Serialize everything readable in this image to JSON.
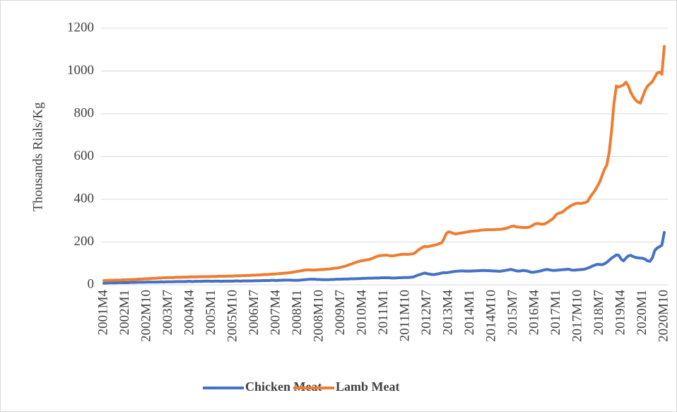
{
  "chart_data": {
    "type": "line",
    "y_label": "Thousands Rials/Kg",
    "ylim": [
      0,
      1200
    ],
    "yticks": [
      0,
      200,
      400,
      600,
      800,
      1000,
      1200
    ],
    "grid": true,
    "legend": "bottom",
    "categories": [
      "2001M4",
      null,
      null,
      null,
      null,
      null,
      null,
      null,
      null,
      "2002M1",
      null,
      null,
      null,
      null,
      null,
      null,
      null,
      null,
      "2002M10",
      null,
      null,
      null,
      null,
      null,
      null,
      null,
      null,
      "2003M7",
      null,
      null,
      null,
      null,
      null,
      null,
      null,
      null,
      "2004M4",
      null,
      null,
      null,
      null,
      null,
      null,
      null,
      null,
      "2005M1",
      null,
      null,
      null,
      null,
      null,
      null,
      null,
      null,
      "2005M10",
      null,
      null,
      null,
      null,
      null,
      null,
      null,
      null,
      "2006M7",
      null,
      null,
      null,
      null,
      null,
      null,
      null,
      null,
      "2007M4",
      null,
      null,
      null,
      null,
      null,
      null,
      null,
      null,
      "2008M1",
      null,
      null,
      null,
      null,
      null,
      null,
      null,
      null,
      "2008M10",
      null,
      null,
      null,
      null,
      null,
      null,
      null,
      null,
      "2009M7",
      null,
      null,
      null,
      null,
      null,
      null,
      null,
      null,
      "2010M4",
      null,
      null,
      null,
      null,
      null,
      null,
      null,
      null,
      "2011M1",
      null,
      null,
      null,
      null,
      null,
      null,
      null,
      null,
      "2011M10",
      null,
      null,
      null,
      null,
      null,
      null,
      null,
      null,
      "2012M7",
      null,
      null,
      null,
      null,
      null,
      null,
      null,
      null,
      "2013M4",
      null,
      null,
      null,
      null,
      null,
      null,
      null,
      null,
      "2014M1",
      null,
      null,
      null,
      null,
      null,
      null,
      null,
      null,
      "2014M10",
      null,
      null,
      null,
      null,
      null,
      null,
      null,
      null,
      "2015M7",
      null,
      null,
      null,
      null,
      null,
      null,
      null,
      null,
      "2016M4",
      null,
      null,
      null,
      null,
      null,
      null,
      null,
      null,
      "2017M1",
      null,
      null,
      null,
      null,
      null,
      null,
      null,
      null,
      "2017M10",
      null,
      null,
      null,
      null,
      null,
      null,
      null,
      null,
      "2018M7",
      null,
      null,
      null,
      null,
      null,
      null,
      null,
      null,
      "2019M4",
      null,
      null,
      null,
      null,
      null,
      null,
      null,
      null,
      "2020M1",
      null,
      null,
      null,
      null,
      null,
      null,
      null,
      null,
      "2020M10"
    ],
    "series": [
      {
        "name": "Chicken Meat",
        "color": "#4472c4",
        "values": [
          8,
          8,
          9,
          9,
          9,
          9,
          10,
          10,
          10,
          10,
          10,
          11,
          11,
          11,
          12,
          12,
          12,
          12,
          13,
          13,
          13,
          13,
          13,
          13,
          14,
          13,
          14,
          14,
          14,
          14,
          15,
          15,
          15,
          15,
          15,
          16,
          16,
          15,
          16,
          16,
          16,
          16,
          17,
          17,
          17,
          16,
          17,
          17,
          17,
          16,
          17,
          17,
          17,
          17,
          17,
          18,
          18,
          17,
          18,
          18,
          18,
          18,
          18,
          19,
          19,
          19,
          20,
          20,
          20,
          20,
          21,
          21,
          20,
          21,
          21,
          22,
          22,
          22,
          22,
          21,
          21,
          21,
          22,
          23,
          24,
          25,
          26,
          26,
          26,
          25,
          25,
          24,
          24,
          24,
          24,
          25,
          25,
          26,
          26,
          26,
          27,
          27,
          27,
          28,
          28,
          28,
          29,
          29,
          30,
          30,
          31,
          31,
          31,
          32,
          32,
          32,
          33,
          33,
          33,
          33,
          32,
          32,
          32,
          33,
          33,
          34,
          34,
          34,
          35,
          36,
          40,
          45,
          48,
          52,
          55,
          52,
          50,
          48,
          48,
          50,
          52,
          55,
          57,
          56,
          58,
          60,
          62,
          63,
          64,
          65,
          65,
          64,
          64,
          64,
          65,
          65,
          66,
          66,
          67,
          67,
          66,
          66,
          65,
          65,
          64,
          63,
          64,
          66,
          68,
          70,
          72,
          69,
          66,
          64,
          65,
          67,
          66,
          64,
          60,
          58,
          60,
          62,
          64,
          67,
          70,
          72,
          70,
          68,
          67,
          68,
          69,
          70,
          71,
          72,
          73,
          70,
          68,
          69,
          70,
          71,
          72,
          74,
          78,
          82,
          88,
          92,
          96,
          95,
          94,
          98,
          105,
          115,
          125,
          132,
          140,
          138,
          120,
          112,
          125,
          135,
          138,
          132,
          128,
          126,
          125,
          124,
          120,
          112,
          110,
          125,
          160,
          172,
          178,
          185,
          245
        ]
      },
      {
        "name": "Lamb Meat",
        "color": "#ed7d31",
        "values": [
          20,
          20,
          21,
          21,
          21,
          22,
          22,
          22,
          23,
          23,
          24,
          24,
          25,
          25,
          26,
          27,
          27,
          28,
          28,
          29,
          30,
          30,
          31,
          32,
          32,
          33,
          33,
          34,
          34,
          34,
          35,
          35,
          35,
          36,
          36,
          36,
          37,
          37,
          37,
          37,
          38,
          38,
          38,
          38,
          38,
          39,
          39,
          39,
          40,
          40,
          40,
          40,
          41,
          41,
          41,
          42,
          42,
          42,
          43,
          43,
          44,
          44,
          45,
          45,
          46,
          46,
          47,
          48,
          48,
          49,
          50,
          50,
          51,
          52,
          53,
          54,
          55,
          56,
          57,
          59,
          61,
          63,
          65,
          67,
          69,
          70,
          70,
          69,
          69,
          70,
          71,
          71,
          72,
          73,
          74,
          75,
          77,
          78,
          80,
          82,
          85,
          88,
          92,
          96,
          100,
          104,
          108,
          111,
          113,
          115,
          117,
          119,
          123,
          128,
          133,
          136,
          137,
          138,
          139,
          137,
          135,
          136,
          138,
          140,
          142,
          143,
          143,
          142,
          144,
          145,
          150,
          160,
          168,
          175,
          180,
          178,
          180,
          183,
          185,
          188,
          192,
          196,
          215,
          240,
          248,
          245,
          240,
          238,
          240,
          242,
          244,
          246,
          248,
          250,
          251,
          252,
          253,
          255,
          256,
          257,
          258,
          258,
          258,
          258,
          259,
          259,
          260,
          262,
          264,
          268,
          273,
          275,
          272,
          270,
          269,
          268,
          268,
          268,
          272,
          278,
          285,
          287,
          285,
          283,
          285,
          290,
          298,
          305,
          315,
          330,
          335,
          338,
          345,
          355,
          362,
          370,
          375,
          380,
          382,
          380,
          382,
          385,
          390,
          410,
          425,
          440,
          460,
          480,
          510,
          540,
          560,
          620,
          720,
          850,
          930,
          925,
          930,
          935,
          948,
          930,
          900,
          880,
          865,
          855,
          850,
          880,
          910,
          930,
          940,
          950,
          970,
          990,
          995,
          985,
          1115
        ]
      }
    ]
  }
}
